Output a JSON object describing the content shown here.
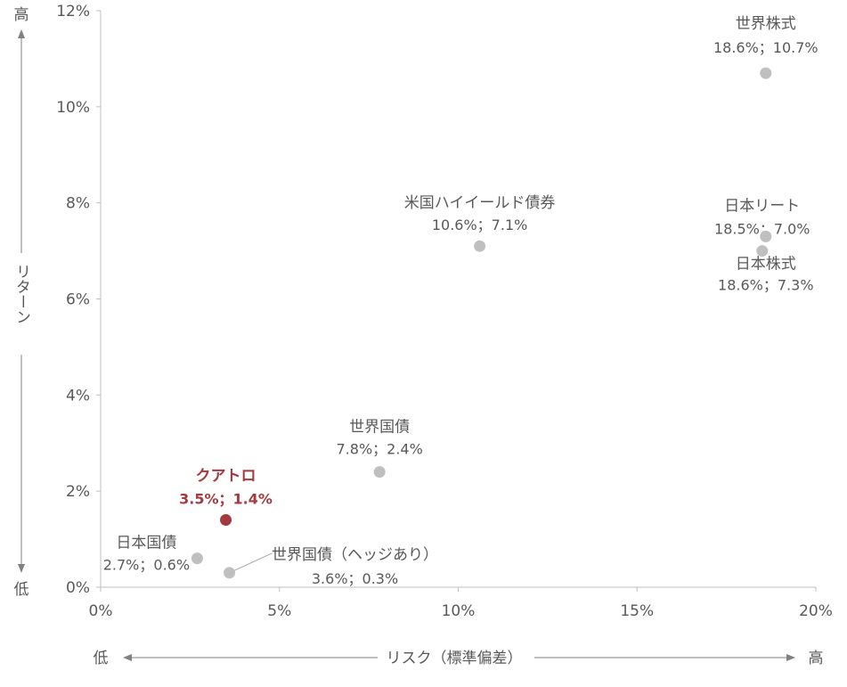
{
  "chart_data": {
    "type": "scatter",
    "title": "",
    "xlabel": "リスク（標準偏差）",
    "ylabel": "リターン",
    "x_unit": "%",
    "y_unit": "%",
    "xlim": [
      0,
      20
    ],
    "ylim": [
      0,
      12
    ],
    "x_ticks": [
      {
        "value": 0,
        "label": "0%"
      },
      {
        "value": 5,
        "label": "5%"
      },
      {
        "value": 10,
        "label": "10%"
      },
      {
        "value": 15,
        "label": "15%"
      },
      {
        "value": 20,
        "label": "20%"
      }
    ],
    "y_ticks": [
      {
        "value": 0,
        "label": "0%"
      },
      {
        "value": 2,
        "label": "2%"
      },
      {
        "value": 4,
        "label": "4%"
      },
      {
        "value": 6,
        "label": "6%"
      },
      {
        "value": 8,
        "label": "8%"
      },
      {
        "value": 10,
        "label": "10%"
      },
      {
        "value": 12,
        "label": "12%"
      }
    ],
    "x_axis_low_label": "低",
    "x_axis_high_label": "高",
    "y_axis_low_label": "低",
    "y_axis_high_label": "高",
    "grid": false,
    "legend": "none",
    "point_color": "#bfbfbf",
    "highlight_color": "#a33a40",
    "label_color": "#595959",
    "points": [
      {
        "key": "world-equity",
        "name": "世界株式",
        "value_label": "18.6%；10.7%",
        "x": 18.6,
        "y": 10.7,
        "highlight": false
      },
      {
        "key": "japan-reit",
        "name": "日本リート",
        "value_label": "18.5%；7.0%",
        "x": 18.5,
        "y": 7.0,
        "highlight": false
      },
      {
        "key": "japan-equity",
        "name": "日本株式",
        "value_label": "18.6%；7.3%",
        "x": 18.6,
        "y": 7.3,
        "highlight": false
      },
      {
        "key": "us-high-yield",
        "name": "米国ハイイールド債券",
        "value_label": "10.6%；7.1%",
        "x": 10.6,
        "y": 7.1,
        "highlight": false
      },
      {
        "key": "world-bond",
        "name": "世界国債",
        "value_label": "7.8%；2.4%",
        "x": 7.8,
        "y": 2.4,
        "highlight": false
      },
      {
        "key": "quatro",
        "name": "クアトロ",
        "value_label": "3.5%；1.4%",
        "x": 3.5,
        "y": 1.4,
        "highlight": true
      },
      {
        "key": "japan-bond",
        "name": "日本国債",
        "value_label": "2.7%；0.6%",
        "x": 2.7,
        "y": 0.6,
        "highlight": false
      },
      {
        "key": "world-bond-hedged",
        "name": "世界国債（ヘッジあり）",
        "value_label": "3.6%；0.3%",
        "x": 3.6,
        "y": 0.3,
        "highlight": false
      }
    ]
  }
}
